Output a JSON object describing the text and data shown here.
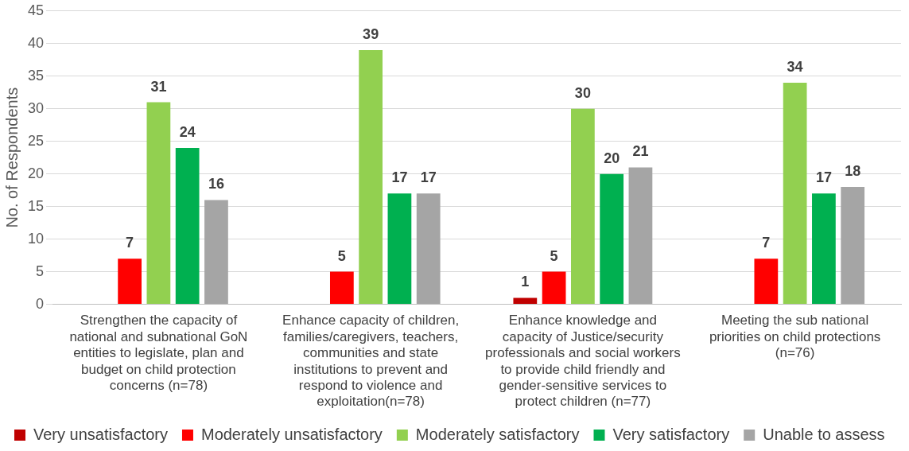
{
  "chart_data": {
    "type": "bar",
    "ylabel": "No. of Respondents",
    "categories": [
      "Strengthen the capacity of national and subnational GoN entities to legislate, plan and budget on child protection concerns (n=78)",
      "Enhance capacity of children, families/caregivers, teachers, communities and state institutions to prevent and respond to violence and exploitation(n=78)",
      "Enhance knowledge and capacity of Justice/security professionals and social workers to provide child friendly and gender-sensitive services to protect children (n=77)",
      "Meeting the sub national priorities on child protections (n=76)"
    ],
    "series": [
      {
        "name": "Very unsatisfactory",
        "color": "#c00000",
        "values": [
          null,
          null,
          1,
          null
        ]
      },
      {
        "name": "Moderately unsatisfactory",
        "color": "#ff0000",
        "values": [
          7,
          5,
          5,
          7
        ]
      },
      {
        "name": "Moderately satisfactory",
        "color": "#92d050",
        "values": [
          31,
          39,
          30,
          34
        ]
      },
      {
        "name": "Very satisfactory",
        "color": "#00b050",
        "values": [
          24,
          17,
          20,
          17
        ]
      },
      {
        "name": "Unable to assess",
        "color": "#a5a5a5",
        "values": [
          16,
          17,
          21,
          18
        ]
      }
    ],
    "ylim": [
      0,
      45
    ],
    "yticks": [
      0,
      5,
      10,
      15,
      20,
      25,
      30,
      35,
      40,
      45
    ],
    "grid": "y",
    "legend": "bottom",
    "data_labels": true
  }
}
